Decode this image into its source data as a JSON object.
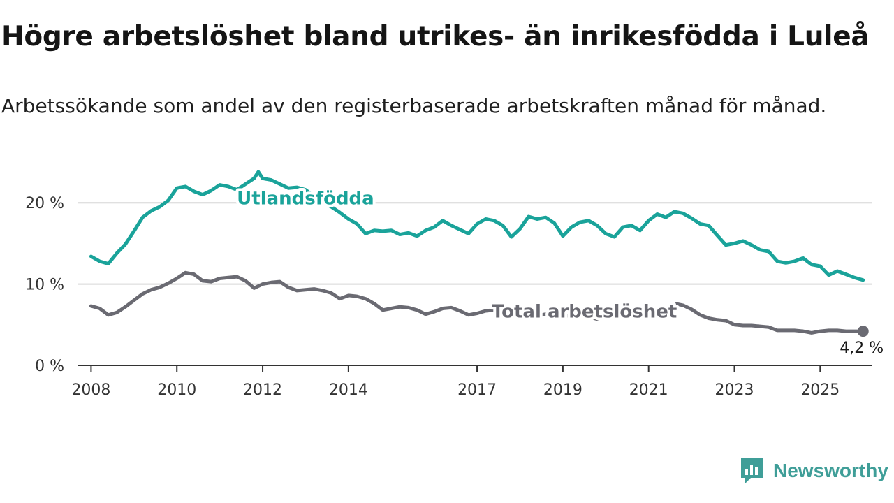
{
  "header": {
    "title": "Högre arbetslöshet bland utrikes- än inrikesfödda i Luleå",
    "subtitle": "Arbetssökande som andel av den registerbaserade arbetskraften månad för månad."
  },
  "brand": {
    "name": "Newsworthy",
    "icon": "newsworthy-chart-logo-icon",
    "color": "#3f9e98"
  },
  "chart_data": {
    "type": "line",
    "xlabel": "",
    "ylabel": "",
    "xlim": [
      2007.7,
      2026.2
    ],
    "ylim": [
      0,
      25
    ],
    "grid": true,
    "x_ticks": [
      {
        "value": 2008,
        "label": "2008"
      },
      {
        "value": 2010,
        "label": "2010"
      },
      {
        "value": 2012,
        "label": "2012"
      },
      {
        "value": 2014,
        "label": "2014"
      },
      {
        "value": 2017,
        "label": "2017"
      },
      {
        "value": 2019,
        "label": "2019"
      },
      {
        "value": 2021,
        "label": "2021"
      },
      {
        "value": 2023,
        "label": "2023"
      },
      {
        "value": 2025,
        "label": "2025"
      }
    ],
    "y_ticks": [
      {
        "value": 0,
        "label": "0 %"
      },
      {
        "value": 10,
        "label": "10 %"
      },
      {
        "value": 20,
        "label": "20 %"
      }
    ],
    "series": [
      {
        "name": "Utlandsfödda",
        "color": "#1aa39a",
        "label_pos": {
          "x": 2013.0,
          "y": 19.8
        },
        "points": [
          [
            2008.0,
            13.4
          ],
          [
            2008.2,
            12.8
          ],
          [
            2008.4,
            12.5
          ],
          [
            2008.6,
            13.8
          ],
          [
            2008.8,
            14.9
          ],
          [
            2009.0,
            16.5
          ],
          [
            2009.2,
            18.2
          ],
          [
            2009.4,
            19.0
          ],
          [
            2009.6,
            19.5
          ],
          [
            2009.8,
            20.3
          ],
          [
            2010.0,
            21.8
          ],
          [
            2010.2,
            22.0
          ],
          [
            2010.4,
            21.4
          ],
          [
            2010.6,
            21.0
          ],
          [
            2010.8,
            21.5
          ],
          [
            2011.0,
            22.2
          ],
          [
            2011.2,
            22.0
          ],
          [
            2011.4,
            21.6
          ],
          [
            2011.6,
            22.3
          ],
          [
            2011.8,
            23.0
          ],
          [
            2011.9,
            23.8
          ],
          [
            2012.0,
            23.0
          ],
          [
            2012.2,
            22.8
          ],
          [
            2012.4,
            22.3
          ],
          [
            2012.6,
            21.8
          ],
          [
            2012.8,
            21.9
          ],
          [
            2013.0,
            21.6
          ],
          [
            2013.2,
            20.8
          ],
          [
            2013.4,
            20.0
          ],
          [
            2013.6,
            19.5
          ],
          [
            2013.8,
            18.8
          ],
          [
            2014.0,
            18.0
          ],
          [
            2014.2,
            17.4
          ],
          [
            2014.4,
            16.2
          ],
          [
            2014.6,
            16.6
          ],
          [
            2014.8,
            16.5
          ],
          [
            2015.0,
            16.6
          ],
          [
            2015.2,
            16.1
          ],
          [
            2015.4,
            16.3
          ],
          [
            2015.6,
            15.9
          ],
          [
            2015.8,
            16.6
          ],
          [
            2016.0,
            17.0
          ],
          [
            2016.2,
            17.8
          ],
          [
            2016.4,
            17.2
          ],
          [
            2016.6,
            16.7
          ],
          [
            2016.8,
            16.2
          ],
          [
            2017.0,
            17.4
          ],
          [
            2017.2,
            18.0
          ],
          [
            2017.4,
            17.8
          ],
          [
            2017.6,
            17.2
          ],
          [
            2017.8,
            15.8
          ],
          [
            2018.0,
            16.8
          ],
          [
            2018.2,
            18.3
          ],
          [
            2018.4,
            18.0
          ],
          [
            2018.6,
            18.2
          ],
          [
            2018.8,
            17.5
          ],
          [
            2019.0,
            15.9
          ],
          [
            2019.2,
            17.0
          ],
          [
            2019.4,
            17.6
          ],
          [
            2019.6,
            17.8
          ],
          [
            2019.8,
            17.2
          ],
          [
            2020.0,
            16.2
          ],
          [
            2020.2,
            15.8
          ],
          [
            2020.4,
            17.0
          ],
          [
            2020.6,
            17.2
          ],
          [
            2020.8,
            16.6
          ],
          [
            2021.0,
            17.8
          ],
          [
            2021.2,
            18.6
          ],
          [
            2021.4,
            18.2
          ],
          [
            2021.6,
            18.9
          ],
          [
            2021.8,
            18.7
          ],
          [
            2022.0,
            18.1
          ],
          [
            2022.2,
            17.4
          ],
          [
            2022.4,
            17.2
          ],
          [
            2022.6,
            16.0
          ],
          [
            2022.8,
            14.8
          ],
          [
            2023.0,
            15.0
          ],
          [
            2023.2,
            15.3
          ],
          [
            2023.4,
            14.8
          ],
          [
            2023.6,
            14.2
          ],
          [
            2023.8,
            14.0
          ],
          [
            2024.0,
            12.8
          ],
          [
            2024.2,
            12.6
          ],
          [
            2024.4,
            12.8
          ],
          [
            2024.6,
            13.2
          ],
          [
            2024.8,
            12.4
          ],
          [
            2025.0,
            12.2
          ],
          [
            2025.2,
            11.1
          ],
          [
            2025.4,
            11.6
          ],
          [
            2025.6,
            11.2
          ],
          [
            2025.8,
            10.8
          ],
          [
            2026.0,
            10.5
          ]
        ]
      },
      {
        "name": "Total arbetslöshet",
        "color": "#6a6a72",
        "label_pos": {
          "x": 2019.5,
          "y": 5.9
        },
        "end_label": "4,2 %",
        "points": [
          [
            2008.0,
            7.3
          ],
          [
            2008.2,
            7.0
          ],
          [
            2008.4,
            6.2
          ],
          [
            2008.6,
            6.5
          ],
          [
            2008.8,
            7.2
          ],
          [
            2009.0,
            8.0
          ],
          [
            2009.2,
            8.8
          ],
          [
            2009.4,
            9.3
          ],
          [
            2009.6,
            9.6
          ],
          [
            2009.8,
            10.1
          ],
          [
            2010.0,
            10.7
          ],
          [
            2010.2,
            11.4
          ],
          [
            2010.4,
            11.2
          ],
          [
            2010.6,
            10.4
          ],
          [
            2010.8,
            10.3
          ],
          [
            2011.0,
            10.7
          ],
          [
            2011.2,
            10.8
          ],
          [
            2011.4,
            10.9
          ],
          [
            2011.6,
            10.4
          ],
          [
            2011.8,
            9.5
          ],
          [
            2012.0,
            10.0
          ],
          [
            2012.2,
            10.2
          ],
          [
            2012.4,
            10.3
          ],
          [
            2012.6,
            9.6
          ],
          [
            2012.8,
            9.2
          ],
          [
            2013.0,
            9.3
          ],
          [
            2013.2,
            9.4
          ],
          [
            2013.4,
            9.2
          ],
          [
            2013.6,
            8.9
          ],
          [
            2013.8,
            8.2
          ],
          [
            2014.0,
            8.6
          ],
          [
            2014.2,
            8.5
          ],
          [
            2014.4,
            8.2
          ],
          [
            2014.6,
            7.6
          ],
          [
            2014.8,
            6.8
          ],
          [
            2015.0,
            7.0
          ],
          [
            2015.2,
            7.2
          ],
          [
            2015.4,
            7.1
          ],
          [
            2015.6,
            6.8
          ],
          [
            2015.8,
            6.3
          ],
          [
            2016.0,
            6.6
          ],
          [
            2016.2,
            7.0
          ],
          [
            2016.4,
            7.1
          ],
          [
            2016.6,
            6.7
          ],
          [
            2016.8,
            6.2
          ],
          [
            2017.0,
            6.4
          ],
          [
            2017.2,
            6.7
          ],
          [
            2017.4,
            6.8
          ],
          [
            2017.6,
            6.6
          ],
          [
            2017.8,
            6.3
          ],
          [
            2018.0,
            6.2
          ],
          [
            2018.2,
            6.0
          ],
          [
            2018.4,
            6.1
          ],
          [
            2018.6,
            6.3
          ],
          [
            2018.8,
            6.1
          ],
          [
            2019.0,
            6.0
          ],
          [
            2019.2,
            6.2
          ],
          [
            2019.4,
            6.3
          ],
          [
            2019.6,
            6.0
          ],
          [
            2019.8,
            5.7
          ],
          [
            2020.0,
            6.1
          ],
          [
            2020.2,
            6.5
          ],
          [
            2020.4,
            6.3
          ],
          [
            2020.6,
            6.4
          ],
          [
            2020.8,
            6.0
          ],
          [
            2021.0,
            6.2
          ],
          [
            2021.2,
            6.6
          ],
          [
            2021.4,
            7.0
          ],
          [
            2021.6,
            7.6
          ],
          [
            2021.8,
            7.4
          ],
          [
            2022.0,
            6.9
          ],
          [
            2022.2,
            6.2
          ],
          [
            2022.4,
            5.8
          ],
          [
            2022.6,
            5.6
          ],
          [
            2022.8,
            5.5
          ],
          [
            2023.0,
            5.0
          ],
          [
            2023.2,
            4.9
          ],
          [
            2023.4,
            4.9
          ],
          [
            2023.6,
            4.8
          ],
          [
            2023.8,
            4.7
          ],
          [
            2024.0,
            4.3
          ],
          [
            2024.2,
            4.3
          ],
          [
            2024.4,
            4.3
          ],
          [
            2024.6,
            4.2
          ],
          [
            2024.8,
            4.0
          ],
          [
            2025.0,
            4.2
          ],
          [
            2025.2,
            4.3
          ],
          [
            2025.4,
            4.3
          ],
          [
            2025.6,
            4.2
          ],
          [
            2025.8,
            4.2
          ],
          [
            2026.0,
            4.2
          ]
        ]
      }
    ]
  }
}
